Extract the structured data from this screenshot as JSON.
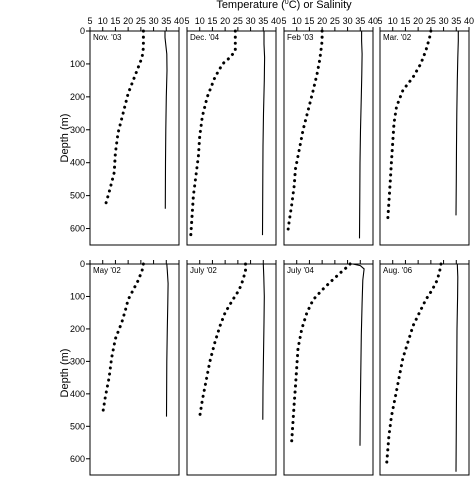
{
  "chart_data": {
    "type": "line",
    "title_prefix": "Temperature (",
    "title_sup": "0",
    "title_suffix": "C) or Salinity",
    "xlabel": "Temperature (0C) or Salinity",
    "ylabel": "Depth (m)",
    "xlim": [
      5,
      40
    ],
    "x_ticks": [
      5,
      10,
      15,
      20,
      25,
      30,
      35,
      40
    ],
    "ylim_top": [
      0,
      650
    ],
    "y_ticks_top": [
      0,
      100,
      200,
      300,
      400,
      500,
      600
    ],
    "ylim_bottom": [
      0,
      650
    ],
    "y_ticks_bottom": [
      0,
      100,
      200,
      300,
      400,
      500,
      600
    ],
    "series_styles": {
      "temperature": "dotted",
      "salinity": "solid"
    },
    "panels": [
      {
        "label": "Nov. '03",
        "row": 0,
        "temperature": [
          [
            26.0,
            0
          ],
          [
            26.0,
            20
          ],
          [
            26.0,
            50
          ],
          [
            25.5,
            80
          ],
          [
            24.0,
            110
          ],
          [
            22.0,
            150
          ],
          [
            20.0,
            190
          ],
          [
            18.0,
            250
          ],
          [
            16.0,
            310
          ],
          [
            15.0,
            370
          ],
          [
            14.5,
            430
          ],
          [
            12.5,
            490
          ],
          [
            11.0,
            530
          ]
        ],
        "salinity": [
          [
            34.5,
            0
          ],
          [
            34.5,
            20
          ],
          [
            35.2,
            70
          ],
          [
            35.3,
            120
          ],
          [
            35.0,
            200
          ],
          [
            34.8,
            300
          ],
          [
            34.7,
            400
          ],
          [
            34.6,
            540
          ]
        ]
      },
      {
        "label": "Dec. '04",
        "row": 0,
        "temperature": [
          [
            24.0,
            0
          ],
          [
            24.0,
            30
          ],
          [
            24.0,
            60
          ],
          [
            22.0,
            80
          ],
          [
            19.0,
            100
          ],
          [
            16.0,
            140
          ],
          [
            13.0,
            200
          ],
          [
            11.0,
            260
          ],
          [
            10.0,
            320
          ],
          [
            9.5,
            380
          ],
          [
            8.5,
            440
          ],
          [
            7.5,
            500
          ],
          [
            7.0,
            560
          ],
          [
            6.5,
            620
          ]
        ],
        "salinity": [
          [
            35.3,
            0
          ],
          [
            35.3,
            40
          ],
          [
            35.5,
            80
          ],
          [
            35.4,
            150
          ],
          [
            35.1,
            250
          ],
          [
            34.9,
            350
          ],
          [
            34.8,
            450
          ],
          [
            34.7,
            620
          ]
        ]
      },
      {
        "label": "Feb '03",
        "row": 0,
        "temperature": [
          [
            20.0,
            0
          ],
          [
            20.0,
            30
          ],
          [
            19.5,
            60
          ],
          [
            19.0,
            90
          ],
          [
            18.0,
            130
          ],
          [
            16.5,
            180
          ],
          [
            14.5,
            240
          ],
          [
            12.5,
            300
          ],
          [
            11.0,
            360
          ],
          [
            9.5,
            420
          ],
          [
            9.0,
            470
          ],
          [
            8.0,
            530
          ],
          [
            7.0,
            580
          ],
          [
            6.5,
            610
          ]
        ],
        "salinity": [
          [
            35.5,
            0
          ],
          [
            35.5,
            30
          ],
          [
            35.7,
            70
          ],
          [
            35.6,
            130
          ],
          [
            35.4,
            200
          ],
          [
            35.1,
            300
          ],
          [
            34.9,
            400
          ],
          [
            34.8,
            500
          ],
          [
            34.7,
            630
          ]
        ]
      },
      {
        "label": "Mar. '02",
        "row": 0,
        "temperature": [
          [
            25.0,
            0
          ],
          [
            24.5,
            20
          ],
          [
            23.0,
            60
          ],
          [
            21.0,
            100
          ],
          [
            18.0,
            140
          ],
          [
            14.0,
            180
          ],
          [
            11.5,
            230
          ],
          [
            10.5,
            280
          ],
          [
            10.0,
            340
          ],
          [
            9.5,
            400
          ],
          [
            9.0,
            460
          ],
          [
            8.5,
            520
          ],
          [
            8.0,
            580
          ]
        ],
        "salinity": [
          [
            35.8,
            0
          ],
          [
            35.8,
            30
          ],
          [
            35.6,
            80
          ],
          [
            35.4,
            150
          ],
          [
            35.2,
            250
          ],
          [
            35.1,
            350
          ],
          [
            35.0,
            450
          ],
          [
            34.9,
            560
          ]
        ]
      },
      {
        "label": "May '02",
        "row": 1,
        "temperature": [
          [
            26.0,
            0
          ],
          [
            25.5,
            20
          ],
          [
            24.0,
            50
          ],
          [
            22.0,
            80
          ],
          [
            20.0,
            110
          ],
          [
            19.0,
            140
          ],
          [
            17.5,
            180
          ],
          [
            15.0,
            230
          ],
          [
            13.5,
            290
          ],
          [
            12.5,
            350
          ],
          [
            11.0,
            410
          ],
          [
            10.0,
            460
          ]
        ],
        "salinity": [
          [
            35.2,
            0
          ],
          [
            35.4,
            20
          ],
          [
            35.7,
            60
          ],
          [
            35.6,
            120
          ],
          [
            35.4,
            200
          ],
          [
            35.2,
            300
          ],
          [
            35.1,
            470
          ]
        ]
      },
      {
        "label": "July '02",
        "row": 1,
        "temperature": [
          [
            28.0,
            0
          ],
          [
            28.0,
            20
          ],
          [
            27.0,
            50
          ],
          [
            25.5,
            80
          ],
          [
            23.0,
            110
          ],
          [
            20.0,
            150
          ],
          [
            18.0,
            190
          ],
          [
            16.0,
            240
          ],
          [
            14.0,
            300
          ],
          [
            12.5,
            360
          ],
          [
            11.0,
            420
          ],
          [
            10.0,
            470
          ]
        ],
        "salinity": [
          [
            35.0,
            0
          ],
          [
            35.2,
            40
          ],
          [
            35.4,
            100
          ],
          [
            35.3,
            180
          ],
          [
            35.1,
            280
          ],
          [
            34.9,
            380
          ],
          [
            34.8,
            480
          ]
        ]
      },
      {
        "label": "July '04",
        "row": 1,
        "temperature": [
          [
            31.0,
            0
          ],
          [
            30.0,
            8
          ],
          [
            27.5,
            25
          ],
          [
            24.0,
            50
          ],
          [
            20.0,
            80
          ],
          [
            16.5,
            110
          ],
          [
            14.0,
            150
          ],
          [
            12.0,
            200
          ],
          [
            10.5,
            260
          ],
          [
            10.0,
            320
          ],
          [
            9.5,
            380
          ],
          [
            9.0,
            430
          ],
          [
            8.5,
            490
          ],
          [
            8.0,
            550
          ]
        ],
        "salinity": [
          [
            32.0,
            0
          ],
          [
            35.0,
            5
          ],
          [
            36.5,
            15
          ],
          [
            36.0,
            50
          ],
          [
            35.7,
            120
          ],
          [
            35.4,
            220
          ],
          [
            35.2,
            330
          ],
          [
            35.0,
            440
          ],
          [
            34.9,
            560
          ]
        ]
      },
      {
        "label": "Aug. '06",
        "row": 1,
        "temperature": [
          [
            29.0,
            0
          ],
          [
            28.5,
            20
          ],
          [
            27.5,
            50
          ],
          [
            25.5,
            80
          ],
          [
            23.0,
            110
          ],
          [
            20.5,
            150
          ],
          [
            18.0,
            190
          ],
          [
            16.0,
            240
          ],
          [
            14.0,
            290
          ],
          [
            12.5,
            350
          ],
          [
            11.0,
            410
          ],
          [
            9.5,
            470
          ],
          [
            8.5,
            530
          ],
          [
            8.0,
            580
          ],
          [
            7.5,
            625
          ]
        ],
        "salinity": [
          [
            35.4,
            0
          ],
          [
            35.6,
            40
          ],
          [
            35.5,
            100
          ],
          [
            35.3,
            200
          ],
          [
            35.2,
            300
          ],
          [
            35.1,
            400
          ],
          [
            35.0,
            500
          ],
          [
            34.9,
            640
          ]
        ]
      }
    ]
  }
}
